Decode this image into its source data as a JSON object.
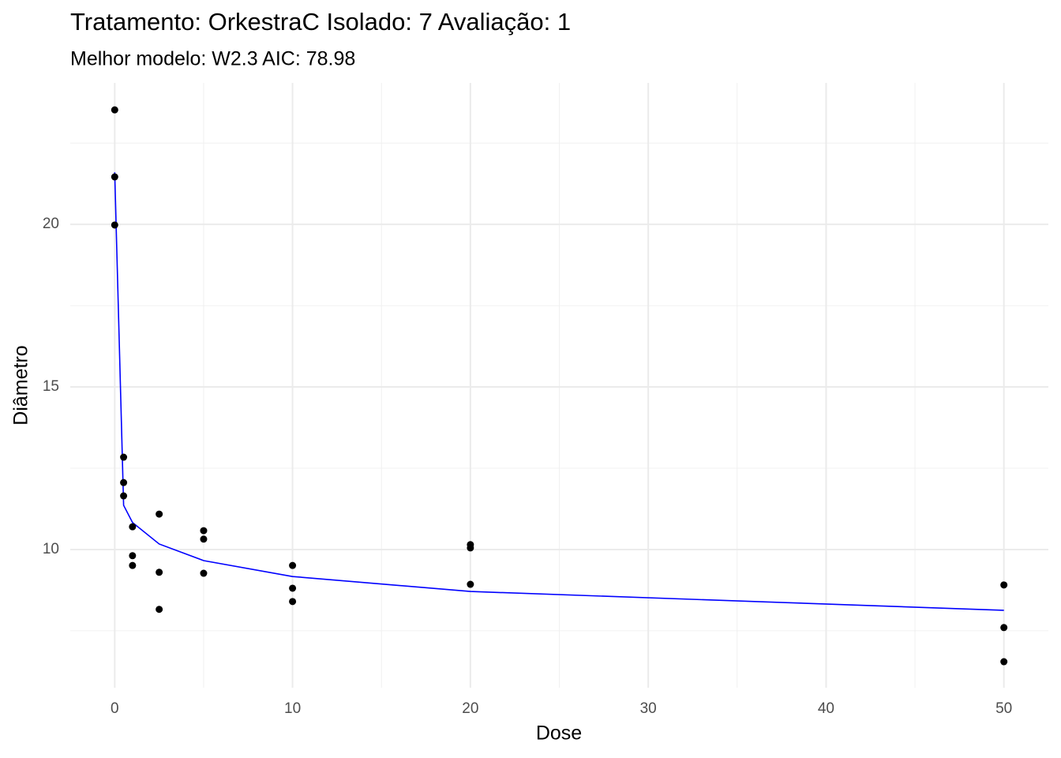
{
  "chart_data": {
    "type": "scatter",
    "title": "Tratamento: OrkestraC Isolado: 7 Avaliação: 1",
    "subtitle": "Melhor modelo: W2.3 AIC: 78.98",
    "x_label": "Dose",
    "y_label": "Diâmetro",
    "x": [
      0,
      0,
      0,
      0.5,
      0.5,
      0.5,
      1,
      1,
      1,
      2.5,
      2.5,
      2.5,
      5,
      5,
      5,
      10,
      10,
      10,
      20,
      20,
      20,
      50,
      50,
      50
    ],
    "values": [
      23.52,
      21.46,
      19.98,
      12.84,
      12.06,
      11.65,
      10.7,
      9.81,
      9.51,
      11.09,
      9.3,
      8.16,
      10.58,
      10.32,
      9.27,
      9.51,
      8.81,
      8.4,
      10.15,
      10.05,
      8.93,
      8.91,
      7.6,
      6.55
    ],
    "color": "#000000",
    "fit": {
      "x": [
        0,
        0.5,
        1,
        2.5,
        5,
        10,
        20,
        50
      ],
      "values": [
        21.6,
        11.36,
        10.83,
        10.17,
        9.66,
        9.17,
        8.71,
        8.13
      ],
      "color": "#0000ff"
    },
    "xlim": [
      -2.5,
      52.5
    ],
    "xticks": [
      0,
      10,
      20,
      30,
      40,
      50
    ],
    "minor_xticks": [
      5,
      15,
      25,
      35,
      45
    ],
    "ylim": [
      5.75,
      24.35
    ],
    "yticks": [
      10,
      15,
      20
    ],
    "minor_yticks": [
      7.5,
      12.5,
      17.5,
      22.5
    ],
    "grid": true
  }
}
